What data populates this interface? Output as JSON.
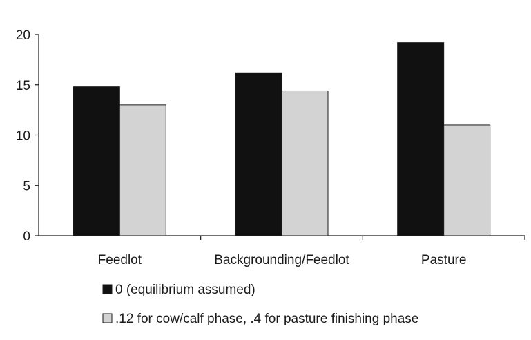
{
  "chart_data": {
    "type": "bar",
    "title": "",
    "xlabel": "",
    "ylabel": "",
    "ylim": [
      0,
      20
    ],
    "yticks": [
      0,
      5,
      10,
      15,
      20
    ],
    "categories": [
      "Feedlot",
      "Backgrounding/Feedlot",
      "Pasture"
    ],
    "series": [
      {
        "name": "0 (equilibrium assumed)",
        "values": [
          14.8,
          16.2,
          19.2
        ],
        "color": "#111111"
      },
      {
        "name": ".12 for cow/calf phase, .4 for pasture finishing phase",
        "values": [
          13.0,
          14.4,
          11.0
        ],
        "color": "#d3d3d3"
      }
    ],
    "legend_position": "bottom-center",
    "grid": false
  }
}
